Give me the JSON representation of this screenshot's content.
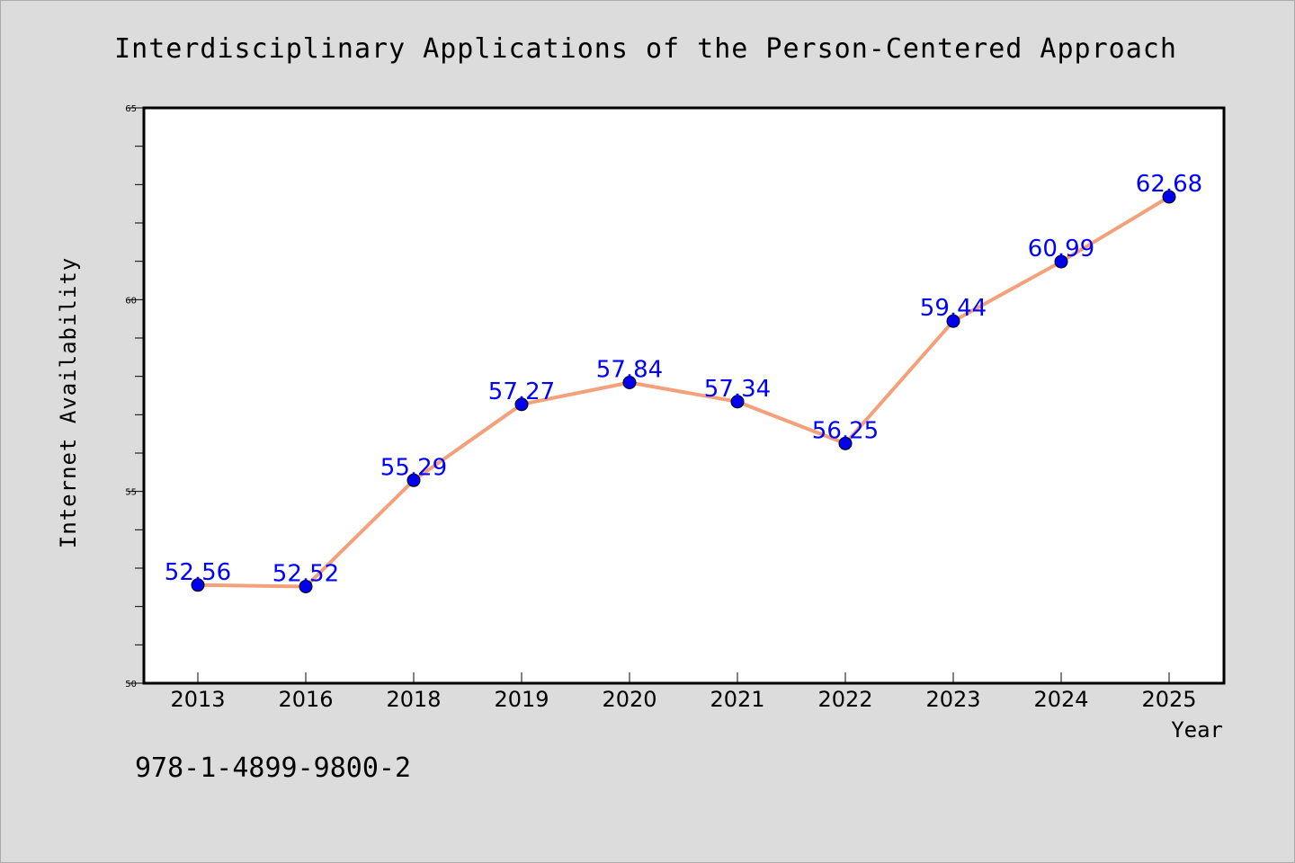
{
  "chart_data": {
    "type": "line",
    "title": "Interdisciplinary Applications of the Person-Centered Approach",
    "xlabel": "Year",
    "ylabel": "Internet Availability",
    "categories": [
      "2013",
      "2016",
      "2018",
      "2019",
      "2020",
      "2021",
      "2022",
      "2023",
      "2024",
      "2025"
    ],
    "series": [
      {
        "values": [
          52.56,
          52.52,
          55.29,
          57.27,
          57.84,
          57.34,
          56.25,
          59.44,
          60.99,
          62.68
        ],
        "data_labels": [
          "52.56",
          "52.52",
          "55.29",
          "57.27",
          "57.84",
          "57.34",
          "56.25",
          "59.44",
          "60.99",
          "62.68"
        ],
        "line_color": "#f4a07a",
        "marker_color": "#0000ee"
      }
    ],
    "ylim": [
      50,
      65
    ],
    "yticks": [
      "50",
      "55",
      "60",
      "65"
    ],
    "grid": false,
    "legend": "none"
  },
  "footer_text": "978-1-4899-9800-2",
  "colors": {
    "background": "#dcdcdc",
    "plot_background": "#ffffff",
    "data_label": "#0000ff"
  }
}
